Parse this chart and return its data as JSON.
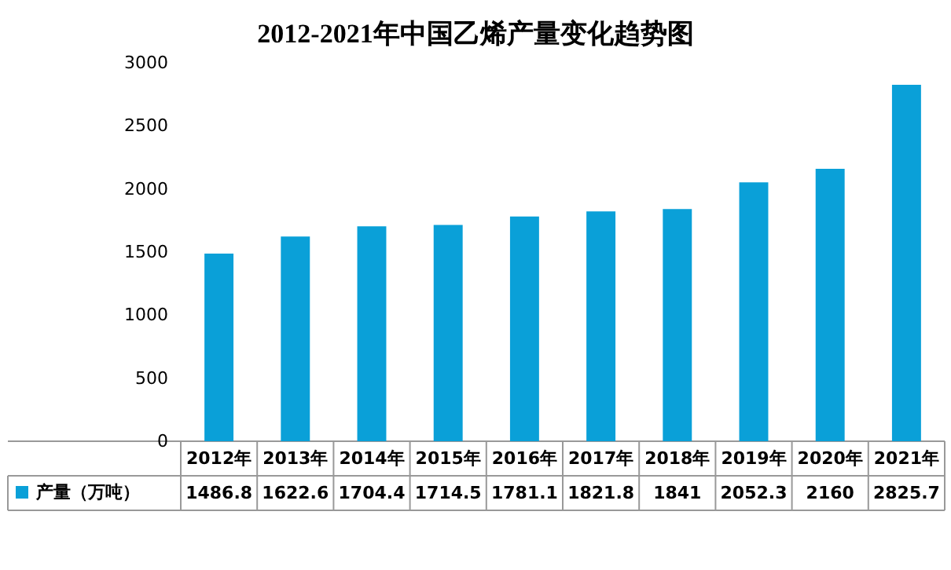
{
  "chart_data": {
    "type": "bar",
    "title": "2012-2021年中国乙烯产量变化趋势图",
    "categories": [
      "2012年",
      "2013年",
      "2014年",
      "2015年",
      "2016年",
      "2017年",
      "2018年",
      "2019年",
      "2020年",
      "2021年"
    ],
    "series": [
      {
        "name": "产量（万吨）",
        "color": "#0aa0d8",
        "values": [
          1486.8,
          1622.6,
          1704.4,
          1714.5,
          1781.1,
          1821.8,
          1841,
          2052.3,
          2160,
          2825.7
        ]
      }
    ],
    "ylim": [
      0,
      3000
    ],
    "yticks": [
      0,
      500,
      1000,
      1500,
      2000,
      2500,
      3000
    ],
    "grid": false,
    "legend": "bottom left",
    "data_labels": true
  }
}
